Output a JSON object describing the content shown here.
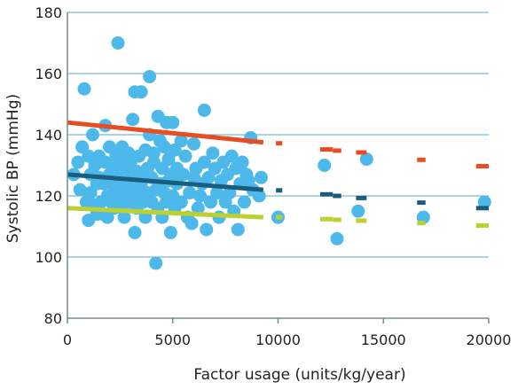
{
  "chart_data": {
    "type": "scatter",
    "title": "",
    "xlabel": "Factor usage (units/kg/year)",
    "ylabel": "Systolic BP (mmHg)",
    "xlim": [
      0,
      20000
    ],
    "ylim": [
      80,
      180
    ],
    "x_ticks": [
      0,
      5000,
      10000,
      15000,
      20000
    ],
    "y_ticks": [
      80,
      100,
      120,
      140,
      160,
      180
    ],
    "grid": "horizontal",
    "legend": "none",
    "colors": {
      "points": "#4cb9ea",
      "upper_line": "#ea4c21",
      "middle_line": "#1b5d80",
      "lower_line": "#bcd131",
      "grid": "#5aa7c7",
      "axis": "#7a8a8f"
    },
    "points": [
      [
        300,
        127
      ],
      [
        500,
        131
      ],
      [
        600,
        122
      ],
      [
        700,
        136
      ],
      [
        800,
        155
      ],
      [
        900,
        118
      ],
      [
        1000,
        133
      ],
      [
        1000,
        112
      ],
      [
        1100,
        127
      ],
      [
        1100,
        121
      ],
      [
        1200,
        140
      ],
      [
        1300,
        130
      ],
      [
        1300,
        117
      ],
      [
        1400,
        114
      ],
      [
        1400,
        124
      ],
      [
        1500,
        133
      ],
      [
        1500,
        126
      ],
      [
        1600,
        118
      ],
      [
        1700,
        124
      ],
      [
        1700,
        114
      ],
      [
        1800,
        143
      ],
      [
        1800,
        131
      ],
      [
        1900,
        120
      ],
      [
        1900,
        113
      ],
      [
        2000,
        136
      ],
      [
        2000,
        127
      ],
      [
        2100,
        118
      ],
      [
        2100,
        124
      ],
      [
        2200,
        116
      ],
      [
        2200,
        129
      ],
      [
        2300,
        133
      ],
      [
        2300,
        122
      ],
      [
        2400,
        126
      ],
      [
        2400,
        170
      ],
      [
        2500,
        120
      ],
      [
        2500,
        131
      ],
      [
        2600,
        136
      ],
      [
        2600,
        116
      ],
      [
        2700,
        124
      ],
      [
        2700,
        113
      ],
      [
        2800,
        129
      ],
      [
        2800,
        121
      ],
      [
        2900,
        134
      ],
      [
        2900,
        118
      ],
      [
        3000,
        131
      ],
      [
        3000,
        126
      ],
      [
        3100,
        122
      ],
      [
        3100,
        145
      ],
      [
        3200,
        108
      ],
      [
        3200,
        154
      ],
      [
        3300,
        116
      ],
      [
        3300,
        128
      ],
      [
        3400,
        120
      ],
      [
        3400,
        133
      ],
      [
        3500,
        124
      ],
      [
        3500,
        154
      ],
      [
        3600,
        118
      ],
      [
        3600,
        127
      ],
      [
        3700,
        135
      ],
      [
        3700,
        113
      ],
      [
        3800,
        129
      ],
      [
        3800,
        121
      ],
      [
        3900,
        140
      ],
      [
        3900,
        159
      ],
      [
        4000,
        126
      ],
      [
        4000,
        118
      ],
      [
        4100,
        131
      ],
      [
        4100,
        134
      ],
      [
        4200,
        122
      ],
      [
        4200,
        98
      ],
      [
        4300,
        116
      ],
      [
        4300,
        146
      ],
      [
        4400,
        124
      ],
      [
        4400,
        138
      ],
      [
        4500,
        129
      ],
      [
        4500,
        113
      ],
      [
        4600,
        136
      ],
      [
        4600,
        121
      ],
      [
        4700,
        144
      ],
      [
        4700,
        118
      ],
      [
        4800,
        125
      ],
      [
        4800,
        132
      ],
      [
        4900,
        108
      ],
      [
        4900,
        127
      ],
      [
        5000,
        144
      ],
      [
        5000,
        120
      ],
      [
        5100,
        135
      ],
      [
        5100,
        116
      ],
      [
        5200,
        129
      ],
      [
        5200,
        124
      ],
      [
        5400,
        138
      ],
      [
        5400,
        118
      ],
      [
        5500,
        127
      ],
      [
        5600,
        133
      ],
      [
        5700,
        113
      ],
      [
        5800,
        121
      ],
      [
        5900,
        111
      ],
      [
        6000,
        137
      ],
      [
        6000,
        126
      ],
      [
        6100,
        129
      ],
      [
        6200,
        116
      ],
      [
        6300,
        120
      ],
      [
        6400,
        124
      ],
      [
        6500,
        148
      ],
      [
        6500,
        131
      ],
      [
        6600,
        109
      ],
      [
        6700,
        126
      ],
      [
        6800,
        118
      ],
      [
        6900,
        134
      ],
      [
        7000,
        129
      ],
      [
        7100,
        121
      ],
      [
        7200,
        113
      ],
      [
        7300,
        125
      ],
      [
        7400,
        131
      ],
      [
        7500,
        118
      ],
      [
        7600,
        127
      ],
      [
        7700,
        121
      ],
      [
        7800,
        133
      ],
      [
        7900,
        115
      ],
      [
        8000,
        129
      ],
      [
        8100,
        109
      ],
      [
        8200,
        124
      ],
      [
        8300,
        131
      ],
      [
        8400,
        118
      ],
      [
        8500,
        127
      ],
      [
        8600,
        125
      ],
      [
        8700,
        139
      ],
      [
        8800,
        122
      ],
      [
        9100,
        120
      ],
      [
        9200,
        126
      ],
      [
        10000,
        113
      ],
      [
        12200,
        130
      ],
      [
        12800,
        106
      ],
      [
        13800,
        115
      ],
      [
        14200,
        132
      ],
      [
        16900,
        113
      ],
      [
        19800,
        118
      ]
    ],
    "upper_line": [
      [
        0,
        144
      ],
      [
        9300,
        137.5
      ]
    ],
    "upper_dashes": [
      [
        9900,
        10200,
        137.2
      ],
      [
        12000,
        12600,
        135.2
      ],
      [
        12600,
        13000,
        134.8
      ],
      [
        13700,
        14200,
        134.2
      ],
      [
        16600,
        17000,
        131.8
      ],
      [
        19400,
        20000,
        129.7
      ]
    ],
    "middle_line": [
      [
        0,
        127
      ],
      [
        9300,
        122
      ]
    ],
    "middle_dashes": [
      [
        9900,
        10200,
        121.8
      ],
      [
        12000,
        12600,
        120.5
      ],
      [
        12600,
        13000,
        120.0
      ],
      [
        13700,
        14200,
        119.3
      ],
      [
        16600,
        17000,
        117.8
      ],
      [
        19400,
        20000,
        116.0
      ]
    ],
    "lower_line": [
      [
        0,
        116
      ],
      [
        9300,
        113
      ]
    ],
    "lower_dashes": [
      [
        9900,
        10200,
        113.0
      ],
      [
        12000,
        12600,
        112.4
      ],
      [
        12600,
        13000,
        112.2
      ],
      [
        13700,
        14200,
        111.9
      ],
      [
        16600,
        17000,
        111.1
      ],
      [
        19400,
        20000,
        110.3
      ]
    ]
  }
}
